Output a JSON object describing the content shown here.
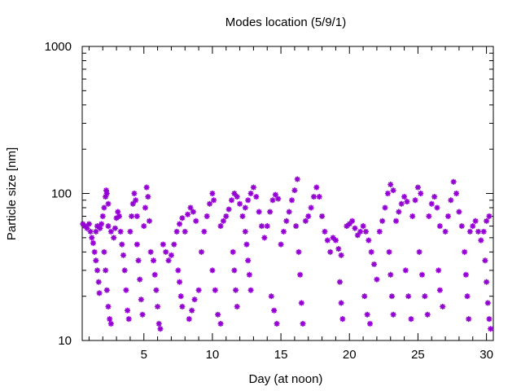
{
  "chart_data": {
    "type": "scatter",
    "title": "Modes location (5/9/1)",
    "xlabel": "Day (at noon)",
    "ylabel": "Particle size [nm]",
    "xlim": [
      0.5,
      30.5
    ],
    "ylim": [
      10,
      1000
    ],
    "y_scale": "log",
    "x_ticks": [
      5,
      10,
      15,
      20,
      25,
      30
    ],
    "y_ticks": [
      10,
      100,
      1000
    ],
    "grid": false,
    "marker": "asterisk",
    "color": "#9400D3",
    "series": [
      {
        "values": [
          [
            0.55,
            62
          ],
          [
            0.7,
            60
          ],
          [
            0.85,
            58
          ],
          [
            1.0,
            62
          ],
          [
            1.1,
            55
          ],
          [
            1.2,
            50
          ],
          [
            1.3,
            46
          ],
          [
            1.4,
            40
          ],
          [
            1.5,
            35
          ],
          [
            1.6,
            30
          ],
          [
            1.7,
            25
          ],
          [
            1.75,
            21
          ],
          [
            1.5,
            55
          ],
          [
            1.6,
            60
          ],
          [
            1.8,
            58
          ],
          [
            1.9,
            62
          ],
          [
            2.0,
            70
          ],
          [
            2.1,
            80
          ],
          [
            2.2,
            95
          ],
          [
            2.25,
            105
          ],
          [
            2.3,
            100
          ],
          [
            2.4,
            85
          ],
          [
            2.1,
            40
          ],
          [
            2.2,
            30
          ],
          [
            2.3,
            22
          ],
          [
            2.4,
            17
          ],
          [
            2.5,
            14
          ],
          [
            2.6,
            13
          ],
          [
            2.4,
            60
          ],
          [
            2.6,
            55
          ],
          [
            2.8,
            50
          ],
          [
            2.9,
            58
          ],
          [
            3.0,
            68
          ],
          [
            3.1,
            75
          ],
          [
            3.2,
            70
          ],
          [
            3.3,
            55
          ],
          [
            3.4,
            45
          ],
          [
            3.5,
            38
          ],
          [
            3.6,
            30
          ],
          [
            3.7,
            22
          ],
          [
            3.8,
            16
          ],
          [
            3.9,
            14
          ],
          [
            4.0,
            55
          ],
          [
            4.1,
            70
          ],
          [
            4.2,
            85
          ],
          [
            4.3,
            100
          ],
          [
            4.4,
            90
          ],
          [
            4.5,
            70
          ],
          [
            4.5,
            45
          ],
          [
            4.6,
            35
          ],
          [
            4.7,
            26
          ],
          [
            4.8,
            19
          ],
          [
            4.9,
            15
          ],
          [
            5.0,
            60
          ],
          [
            5.1,
            80
          ],
          [
            5.2,
            110
          ],
          [
            5.3,
            95
          ],
          [
            5.4,
            65
          ],
          [
            5.5,
            40
          ],
          [
            5.7,
            35
          ],
          [
            5.8,
            28
          ],
          [
            5.9,
            22
          ],
          [
            6.0,
            17
          ],
          [
            6.1,
            13
          ],
          [
            6.2,
            12
          ],
          [
            6.4,
            45
          ],
          [
            6.6,
            40
          ],
          [
            6.8,
            35
          ],
          [
            7.0,
            38
          ],
          [
            7.2,
            45
          ],
          [
            7.4,
            55
          ],
          [
            7.6,
            62
          ],
          [
            7.8,
            68
          ],
          [
            7.5,
            30
          ],
          [
            7.6,
            25
          ],
          [
            7.7,
            20
          ],
          [
            7.8,
            17
          ],
          [
            8.0,
            55
          ],
          [
            8.2,
            72
          ],
          [
            8.4,
            80
          ],
          [
            8.6,
            75
          ],
          [
            8.8,
            65
          ],
          [
            8.3,
            14
          ],
          [
            8.5,
            16
          ],
          [
            8.7,
            19
          ],
          [
            9.0,
            22
          ],
          [
            9.2,
            40
          ],
          [
            9.4,
            55
          ],
          [
            9.6,
            70
          ],
          [
            9.8,
            85
          ],
          [
            10.0,
            100
          ],
          [
            10.1,
            90
          ],
          [
            10.0,
            30
          ],
          [
            10.2,
            22
          ],
          [
            10.4,
            15
          ],
          [
            10.6,
            13
          ],
          [
            10.6,
            60
          ],
          [
            10.8,
            65
          ],
          [
            11.0,
            70
          ],
          [
            11.2,
            78
          ],
          [
            11.4,
            90
          ],
          [
            11.6,
            100
          ],
          [
            11.8,
            95
          ],
          [
            11.5,
            40
          ],
          [
            11.6,
            30
          ],
          [
            11.7,
            22
          ],
          [
            11.8,
            17
          ],
          [
            12.0,
            85
          ],
          [
            12.2,
            70
          ],
          [
            12.4,
            55
          ],
          [
            12.5,
            45
          ],
          [
            12.6,
            35
          ],
          [
            12.7,
            28
          ],
          [
            12.8,
            22
          ],
          [
            12.4,
            80
          ],
          [
            12.6,
            90
          ],
          [
            12.8,
            100
          ],
          [
            13.0,
            110
          ],
          [
            13.2,
            95
          ],
          [
            13.4,
            75
          ],
          [
            13.6,
            60
          ],
          [
            13.8,
            50
          ],
          [
            14.0,
            60
          ],
          [
            14.2,
            75
          ],
          [
            14.4,
            90
          ],
          [
            14.6,
            98
          ],
          [
            14.8,
            92
          ],
          [
            14.3,
            20
          ],
          [
            14.5,
            16
          ],
          [
            14.7,
            13
          ],
          [
            15.0,
            45
          ],
          [
            15.2,
            55
          ],
          [
            15.4,
            65
          ],
          [
            15.6,
            75
          ],
          [
            15.8,
            90
          ],
          [
            16.0,
            105
          ],
          [
            16.2,
            125
          ],
          [
            16.1,
            60
          ],
          [
            16.3,
            40
          ],
          [
            16.4,
            28
          ],
          [
            16.5,
            18
          ],
          [
            16.6,
            13
          ],
          [
            16.8,
            65
          ],
          [
            17.0,
            70
          ],
          [
            17.2,
            80
          ],
          [
            17.4,
            95
          ],
          [
            17.6,
            110
          ],
          [
            17.8,
            95
          ],
          [
            18.0,
            70
          ],
          [
            18.2,
            55
          ],
          [
            18.4,
            48
          ],
          [
            18.6,
            40
          ],
          [
            18.8,
            50
          ],
          [
            19.0,
            48
          ],
          [
            19.2,
            42
          ],
          [
            19.4,
            38
          ],
          [
            19.3,
            25
          ],
          [
            19.4,
            18
          ],
          [
            19.5,
            14
          ],
          [
            19.8,
            60
          ],
          [
            20.0,
            62
          ],
          [
            20.2,
            65
          ],
          [
            20.4,
            58
          ],
          [
            20.6,
            52
          ],
          [
            20.8,
            55
          ],
          [
            21.0,
            60
          ],
          [
            21.2,
            55
          ],
          [
            21.4,
            48
          ],
          [
            21.6,
            40
          ],
          [
            21.8,
            33
          ],
          [
            22.0,
            26
          ],
          [
            21.1,
            20
          ],
          [
            21.3,
            15
          ],
          [
            21.5,
            13
          ],
          [
            22.2,
            55
          ],
          [
            22.4,
            65
          ],
          [
            22.6,
            80
          ],
          [
            22.8,
            100
          ],
          [
            23.0,
            115
          ],
          [
            23.2,
            105
          ],
          [
            22.9,
            40
          ],
          [
            23.0,
            28
          ],
          [
            23.1,
            20
          ],
          [
            23.2,
            15
          ],
          [
            23.4,
            65
          ],
          [
            23.6,
            75
          ],
          [
            23.8,
            85
          ],
          [
            24.0,
            95
          ],
          [
            24.2,
            88
          ],
          [
            24.1,
            30
          ],
          [
            24.3,
            20
          ],
          [
            24.5,
            14
          ],
          [
            24.6,
            70
          ],
          [
            24.8,
            90
          ],
          [
            25.0,
            110
          ],
          [
            25.2,
            100
          ],
          [
            25.1,
            40
          ],
          [
            25.3,
            28
          ],
          [
            25.5,
            20
          ],
          [
            25.7,
            15
          ],
          [
            25.8,
            70
          ],
          [
            26.0,
            85
          ],
          [
            26.2,
            95
          ],
          [
            26.4,
            80
          ],
          [
            26.6,
            60
          ],
          [
            26.5,
            30
          ],
          [
            26.6,
            22
          ],
          [
            26.8,
            17
          ],
          [
            27.0,
            55
          ],
          [
            27.2,
            70
          ],
          [
            27.4,
            90
          ],
          [
            27.6,
            120
          ],
          [
            27.8,
            100
          ],
          [
            28.0,
            75
          ],
          [
            28.2,
            60
          ],
          [
            28.4,
            40
          ],
          [
            28.5,
            28
          ],
          [
            28.6,
            20
          ],
          [
            28.7,
            14
          ],
          [
            28.8,
            55
          ],
          [
            29.0,
            60
          ],
          [
            29.2,
            65
          ],
          [
            29.4,
            55
          ],
          [
            29.6,
            48
          ],
          [
            29.8,
            55
          ],
          [
            30.0,
            65
          ],
          [
            30.2,
            70
          ],
          [
            29.9,
            35
          ],
          [
            30.0,
            25
          ],
          [
            30.1,
            18
          ],
          [
            30.2,
            14
          ],
          [
            30.3,
            12
          ]
        ]
      }
    ]
  }
}
